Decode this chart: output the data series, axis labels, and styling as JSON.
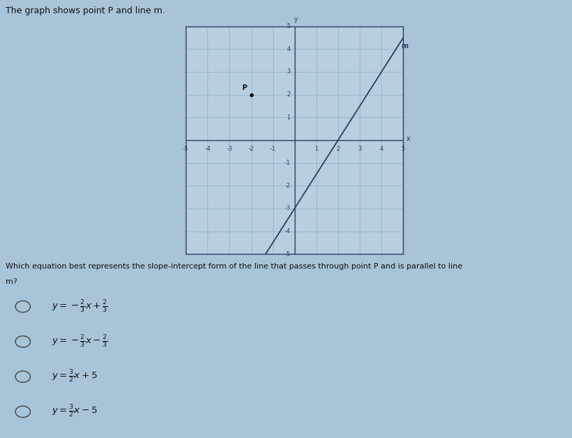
{
  "title": "The graph shows point P and line m.",
  "graph_xlim": [
    -5,
    5
  ],
  "graph_ylim": [
    -5,
    5
  ],
  "line_m_slope": 1.5,
  "line_m_intercept": -3,
  "line_m_color": "#2a3f5f",
  "line_m_label": "m",
  "point_P": [
    -2,
    2
  ],
  "point_P_label": "P",
  "point_color": "#111111",
  "bg_color": "#b8cfe0",
  "grid_color": "#8aaec8",
  "axis_color": "#2a3f5f",
  "fig_bg_color": "#a8c4d8",
  "graph_box_color": "#2a3f5f",
  "tick_fontsize": 6,
  "question_text": "Which equation best represents the slope-intercept form of the line that passes through point P and is parallel to line\nm?",
  "choices": [
    "$y = -\\dfrac{2}{3}x + \\dfrac{2}{3}$",
    "$y = -\\dfrac{2}{3}x - \\dfrac{2}{3}$",
    "$y = \\dfrac{3}{2}x + 5$",
    "$y = \\dfrac{3}{2}x - 5$"
  ]
}
